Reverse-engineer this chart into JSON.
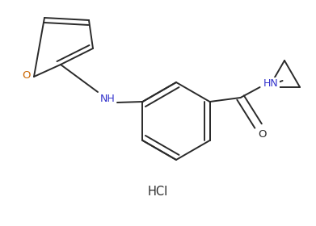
{
  "bg_color": "#ffffff",
  "line_color": "#2a2a2a",
  "text_color": "#2a2a2a",
  "O_color": "#cc6600",
  "NH_color": "#3333cc",
  "label_NH": "NH",
  "label_HN": "HN",
  "label_O_furan": "O",
  "label_O_carbonyl": "O",
  "label_HCl": "HCl",
  "line_width": 1.4,
  "font_size": 9.0,
  "fig_width": 3.91,
  "fig_height": 2.8,
  "dpi": 100
}
